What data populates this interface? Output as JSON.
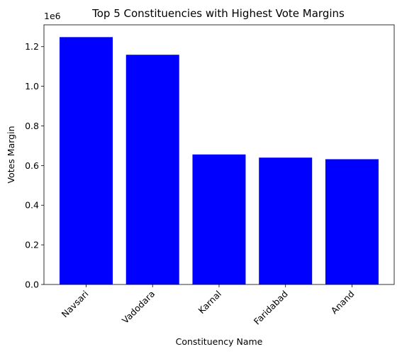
{
  "chart_data": {
    "type": "bar",
    "title": "Top 5 Constituencies with Highest Vote Margins",
    "xlabel": "Constituency Name",
    "ylabel": "Votes Margin",
    "offset_label": "1e6",
    "categories": [
      "Navsari",
      "Vadodara",
      "Karnal",
      "Faridabad",
      "Anand"
    ],
    "values": [
      1248000,
      1159000,
      656000,
      640000,
      632000
    ],
    "ylim": [
      0,
      1310000
    ],
    "yticks": [
      0.0,
      0.2,
      0.4,
      0.6,
      0.8,
      1.0,
      1.2
    ],
    "ytick_labels": [
      "0.0",
      "0.2",
      "0.4",
      "0.6",
      "0.8",
      "1.0",
      "1.2"
    ],
    "ytick_scale": 1000000,
    "bar_color": "#0000ff",
    "grid": false,
    "legend": "none"
  }
}
